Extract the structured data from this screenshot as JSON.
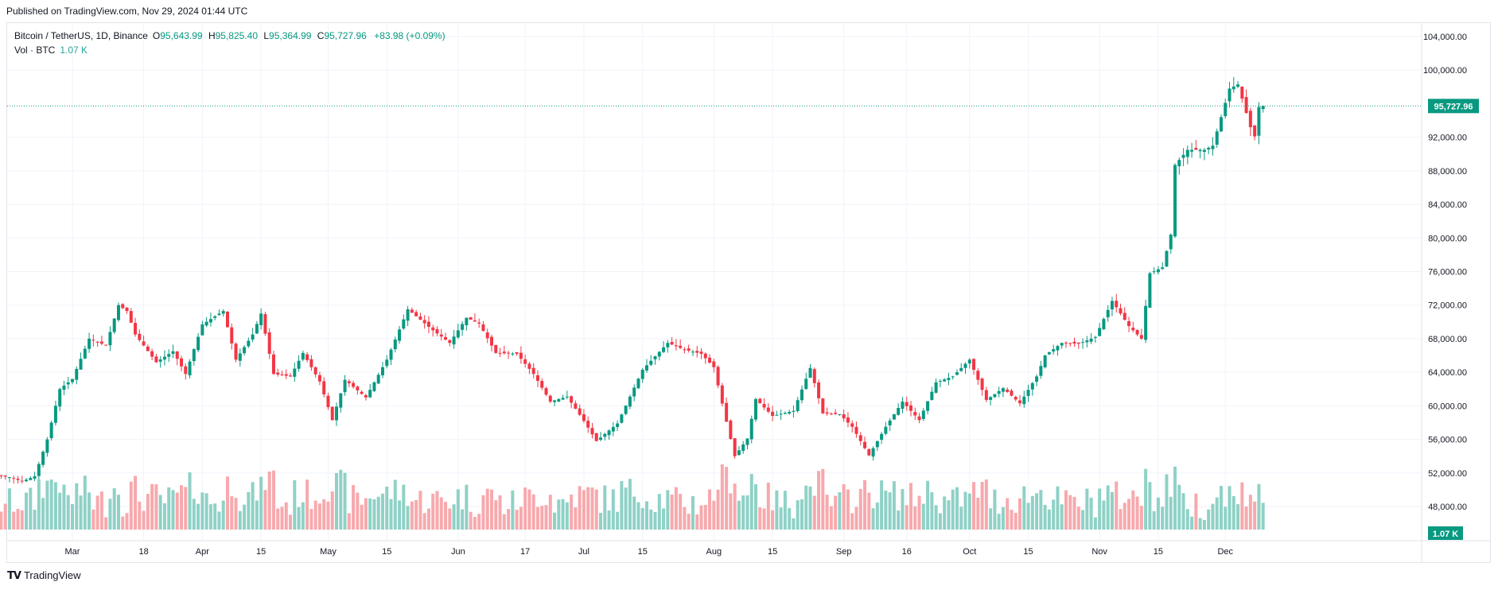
{
  "header": {
    "published": "Published on TradingView.com, Nov 29, 2024 01:44 UTC"
  },
  "legend": {
    "symbol": "Bitcoin / TetherUS, 1D, Binance",
    "o_label": "O",
    "o_value": "95,643.99",
    "h_label": "H",
    "h_value": "95,825.40",
    "l_label": "L",
    "l_value": "95,364.99",
    "c_label": "C",
    "c_value": "95,727.96",
    "change": "+83.98 (+0.09%)",
    "vol_label": "Vol · BTC",
    "vol_value": "1.07 K"
  },
  "footer": {
    "brand": "TradingView"
  },
  "colors": {
    "up": "#089981",
    "down": "#f23645",
    "vol_up": "#8fd1c6",
    "vol_down": "#f7a9ad",
    "grid": "#f0f3fa",
    "axis_text": "#131722"
  },
  "chart_data": {
    "type": "candlestick",
    "y_ticks": [
      "104,000.00",
      "100,000.00",
      "92,000.00",
      "88,000.00",
      "84,000.00",
      "80,000.00",
      "76,000.00",
      "72,000.00",
      "68,000.00",
      "64,000.00",
      "60,000.00",
      "56,000.00",
      "52,000.00",
      "48,000.00"
    ],
    "y_tick_values": [
      104000,
      100000,
      92000,
      88000,
      84000,
      80000,
      76000,
      72000,
      68000,
      64000,
      60000,
      56000,
      52000,
      48000
    ],
    "ylim": [
      46000,
      106000
    ],
    "x_ticks": [
      "Mar",
      "18",
      "Apr",
      "15",
      "May",
      "15",
      "Jun",
      "17",
      "Jul",
      "15",
      "Aug",
      "15",
      "Sep",
      "16",
      "Oct",
      "15",
      "Nov",
      "15",
      "Dec"
    ],
    "x_tick_days": [
      0,
      17,
      31,
      45,
      61,
      75,
      92,
      108,
      122,
      136,
      153,
      167,
      184,
      199,
      214,
      228,
      245,
      259,
      275
    ],
    "last_price_label": "95,727.96",
    "last_price": 95727.96,
    "volume_label": "1.07 K",
    "key_closes": [
      {
        "day": -20,
        "close": 51800
      },
      {
        "day": -15,
        "close": 51500
      },
      {
        "day": -12,
        "close": 51000
      },
      {
        "day": -9,
        "close": 51600
      },
      {
        "day": -6,
        "close": 56000
      },
      {
        "day": -3,
        "close": 62000
      },
      {
        "day": 0,
        "close": 63200
      },
      {
        "day": 4,
        "close": 68000
      },
      {
        "day": 8,
        "close": 67200
      },
      {
        "day": 11,
        "close": 72000
      },
      {
        "day": 13,
        "close": 71300
      },
      {
        "day": 15,
        "close": 68500
      },
      {
        "day": 20,
        "close": 65200
      },
      {
        "day": 24,
        "close": 66500
      },
      {
        "day": 27,
        "close": 63800
      },
      {
        "day": 31,
        "close": 69700
      },
      {
        "day": 36,
        "close": 71300
      },
      {
        "day": 39,
        "close": 65500
      },
      {
        "day": 43,
        "close": 68500
      },
      {
        "day": 45,
        "close": 71000
      },
      {
        "day": 48,
        "close": 63800
      },
      {
        "day": 52,
        "close": 63500
      },
      {
        "day": 55,
        "close": 66300
      },
      {
        "day": 59,
        "close": 62900
      },
      {
        "day": 62,
        "close": 58300
      },
      {
        "day": 65,
        "close": 63100
      },
      {
        "day": 70,
        "close": 61000
      },
      {
        "day": 75,
        "close": 65500
      },
      {
        "day": 80,
        "close": 71500
      },
      {
        "day": 86,
        "close": 69000
      },
      {
        "day": 90,
        "close": 67500
      },
      {
        "day": 94,
        "close": 70500
      },
      {
        "day": 97,
        "close": 69800
      },
      {
        "day": 101,
        "close": 66300
      },
      {
        "day": 106,
        "close": 66200
      },
      {
        "day": 110,
        "close": 63800
      },
      {
        "day": 114,
        "close": 60500
      },
      {
        "day": 118,
        "close": 61100
      },
      {
        "day": 122,
        "close": 58200
      },
      {
        "day": 125,
        "close": 55800
      },
      {
        "day": 130,
        "close": 57900
      },
      {
        "day": 136,
        "close": 64300
      },
      {
        "day": 142,
        "close": 67500
      },
      {
        "day": 146,
        "close": 66700
      },
      {
        "day": 150,
        "close": 66200
      },
      {
        "day": 153,
        "close": 64600
      },
      {
        "day": 156,
        "close": 58100
      },
      {
        "day": 158,
        "close": 54000
      },
      {
        "day": 161,
        "close": 56100
      },
      {
        "day": 163,
        "close": 60800
      },
      {
        "day": 167,
        "close": 58800
      },
      {
        "day": 172,
        "close": 59400
      },
      {
        "day": 176,
        "close": 64500
      },
      {
        "day": 179,
        "close": 59100
      },
      {
        "day": 183,
        "close": 59000
      },
      {
        "day": 186,
        "close": 57500
      },
      {
        "day": 190,
        "close": 54100
      },
      {
        "day": 194,
        "close": 57500
      },
      {
        "day": 198,
        "close": 60500
      },
      {
        "day": 202,
        "close": 58300
      },
      {
        "day": 206,
        "close": 62800
      },
      {
        "day": 210,
        "close": 63500
      },
      {
        "day": 214,
        "close": 65500
      },
      {
        "day": 218,
        "close": 60700
      },
      {
        "day": 222,
        "close": 62100
      },
      {
        "day": 226,
        "close": 60300
      },
      {
        "day": 230,
        "close": 63500
      },
      {
        "day": 232,
        "close": 66000
      },
      {
        "day": 236,
        "close": 67500
      },
      {
        "day": 240,
        "close": 67400
      },
      {
        "day": 244,
        "close": 68200
      },
      {
        "day": 248,
        "close": 72500
      },
      {
        "day": 252,
        "close": 69500
      },
      {
        "day": 255,
        "close": 68000
      },
      {
        "day": 257,
        "close": 75800
      },
      {
        "day": 260,
        "close": 76500
      },
      {
        "day": 262,
        "close": 80400
      },
      {
        "day": 263,
        "close": 88700
      },
      {
        "day": 266,
        "close": 90500
      },
      {
        "day": 270,
        "close": 90500
      },
      {
        "day": 272,
        "close": 91000
      },
      {
        "day": 276,
        "close": 97800
      },
      {
        "day": 278,
        "close": 98300
      },
      {
        "day": 281,
        "close": 93200
      },
      {
        "day": 282,
        "close": 92100
      },
      {
        "day": 283,
        "close": 95600
      },
      {
        "day": 284,
        "close": 95728
      }
    ]
  }
}
